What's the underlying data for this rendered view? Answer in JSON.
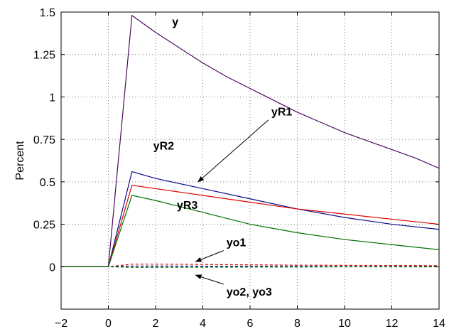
{
  "chart_data": {
    "type": "line",
    "title": "",
    "xlabel": "",
    "ylabel": "Percent",
    "xlim": [
      -2,
      14
    ],
    "ylim": [
      -0.25,
      1.5
    ],
    "grid": true,
    "x_ticks": [
      -2,
      0,
      2,
      4,
      6,
      8,
      10,
      12,
      14
    ],
    "y_ticks": [
      0,
      0.25,
      0.5,
      0.75,
      1,
      1.25,
      1.5
    ],
    "y_tick_labels": [
      "0",
      "0.25",
      "0.5",
      "0.75",
      "1",
      "1.25",
      "1.5"
    ],
    "series": [
      {
        "name": "y",
        "color": "#4b0a5c",
        "style": "solid",
        "x": [
          -2,
          0,
          1,
          2,
          3,
          4,
          5,
          6,
          7,
          8,
          9,
          10,
          11,
          12,
          13,
          14
        ],
        "y": [
          0,
          0,
          1.48,
          1.38,
          1.29,
          1.2,
          1.12,
          1.05,
          0.98,
          0.91,
          0.85,
          0.79,
          0.74,
          0.69,
          0.64,
          0.58
        ]
      },
      {
        "name": "yR2",
        "color": "#0a0a8a",
        "style": "solid",
        "x": [
          -2,
          0,
          1,
          2,
          4,
          6,
          8,
          10,
          12,
          14
        ],
        "y": [
          0,
          0,
          0.56,
          0.52,
          0.46,
          0.4,
          0.34,
          0.29,
          0.25,
          0.22
        ]
      },
      {
        "name": "yR1",
        "color": "#e00000",
        "style": "solid",
        "x": [
          -2,
          0,
          1,
          2,
          4,
          6,
          8,
          10,
          12,
          14
        ],
        "y": [
          0,
          0,
          0.48,
          0.46,
          0.42,
          0.38,
          0.34,
          0.31,
          0.28,
          0.25
        ]
      },
      {
        "name": "yR3",
        "color": "#007000",
        "style": "solid",
        "x": [
          -2,
          0,
          1,
          2,
          4,
          6,
          8,
          10,
          12,
          14
        ],
        "y": [
          0,
          0,
          0.42,
          0.39,
          0.32,
          0.25,
          0.2,
          0.16,
          0.13,
          0.1
        ]
      },
      {
        "name": "yo1",
        "color": "#e00000",
        "style": "dashed",
        "x": [
          -2,
          0,
          1,
          2,
          4,
          6,
          8,
          10,
          12,
          14
        ],
        "y": [
          0,
          0,
          0.015,
          0.015,
          0.013,
          0.011,
          0.009,
          0.008,
          0.007,
          0.006
        ]
      },
      {
        "name": "yo2, yo3",
        "color": "#0a0a8a",
        "style": "dashed",
        "x": [
          -2,
          0,
          1,
          2,
          4,
          6,
          8,
          10,
          12,
          14
        ],
        "y": [
          0,
          0,
          0.004,
          0.004,
          0.003,
          0.002,
          0.002,
          0.001,
          0.001,
          0.001
        ]
      },
      {
        "name": "yo2, yo3",
        "color": "#007000",
        "style": "dashed",
        "x": [
          -2,
          0,
          1,
          2,
          4,
          6,
          8,
          10,
          12,
          14
        ],
        "y": [
          0,
          0,
          -0.004,
          -0.004,
          -0.003,
          -0.002,
          -0.002,
          -0.001,
          -0.001,
          -0.001
        ]
      }
    ],
    "annotations": [
      {
        "text": "y",
        "x": 2.7,
        "y": 1.42,
        "arrow": false
      },
      {
        "text": "yR1",
        "x": 6.9,
        "y": 0.89,
        "arrow": true,
        "arrow_to": [
          3.8,
          0.5
        ]
      },
      {
        "text": "yR2",
        "x": 1.9,
        "y": 0.69,
        "arrow": false
      },
      {
        "text": "yR3",
        "x": 2.9,
        "y": 0.34,
        "arrow": false
      },
      {
        "text": "yo1",
        "x": 5.0,
        "y": 0.12,
        "arrow": true,
        "arrow_to": [
          3.7,
          0.03
        ]
      },
      {
        "text": "yo2, yo3",
        "x": 5.0,
        "y": -0.17,
        "arrow": true,
        "arrow_to": [
          3.7,
          -0.05
        ]
      }
    ]
  }
}
